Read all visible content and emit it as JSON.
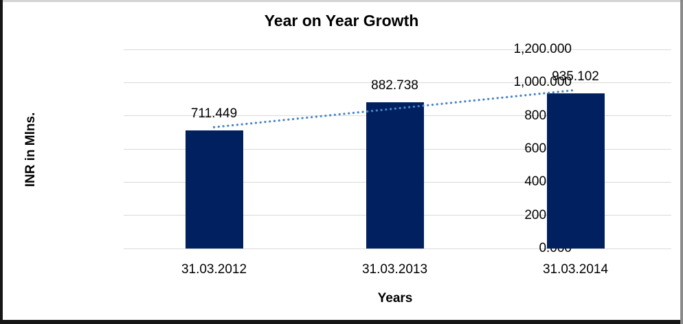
{
  "chart_data": {
    "type": "bar",
    "title": "Year on Year Growth",
    "xlabel": "Years",
    "ylabel": "INR in Mlns.",
    "categories": [
      "31.03.2012",
      "31.03.2013",
      "31.03.2014"
    ],
    "values": [
      711.449,
      882.738,
      935.102
    ],
    "data_labels": [
      "711.449",
      "882.738",
      "935.102"
    ],
    "series_name": "INR in Mlns.",
    "ylim": [
      0,
      1200
    ],
    "ytick_interval": 200,
    "yticks": [
      {
        "value": 0,
        "label": "0.000"
      },
      {
        "value": 200,
        "label": "200.000"
      },
      {
        "value": 400,
        "label": "400.000"
      },
      {
        "value": 600,
        "label": "600.000"
      },
      {
        "value": 800,
        "label": "800.000"
      },
      {
        "value": 1000,
        "label": "1,000.000"
      },
      {
        "value": 1200,
        "label": "1,200.000"
      }
    ],
    "grid": true,
    "legend_position": "none",
    "trendline": {
      "type": "linear",
      "style": "dotted"
    },
    "colors": {
      "bar": "#002060",
      "trendline": "#4a86c8",
      "gridline": "#d9d9d9",
      "text": "#000000",
      "background": "#ffffff"
    }
  }
}
